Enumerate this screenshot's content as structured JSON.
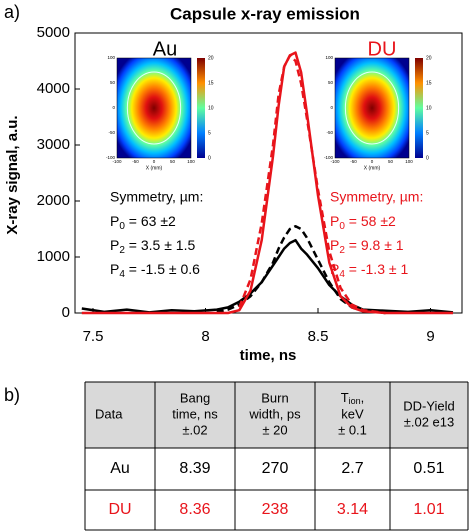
{
  "chart_data": {
    "type": "line",
    "panel_label": "a)",
    "title": "Capsule x-ray emission",
    "xlabel": "time, ns",
    "ylabel": "X-ray signal, a.u.",
    "xlim": [
      7.42,
      9.14
    ],
    "xticks": [
      7.5,
      8,
      8.5,
      9
    ],
    "ylim": [
      0,
      5000
    ],
    "yticks": [
      0,
      1000,
      2000,
      3000,
      4000,
      5000
    ],
    "x": [
      7.45,
      7.55,
      7.65,
      7.75,
      7.85,
      7.95,
      8.05,
      8.1,
      8.15,
      8.2,
      8.25,
      8.3,
      8.325,
      8.35,
      8.375,
      8.4,
      8.425,
      8.45,
      8.5,
      8.55,
      8.6,
      8.65,
      8.7,
      8.8,
      8.9,
      9.0,
      9.1
    ],
    "series": [
      {
        "color": "#000000",
        "dash": false,
        "values": [
          80,
          20,
          60,
          10,
          50,
          30,
          60,
          100,
          200,
          350,
          550,
          850,
          1000,
          1150,
          1250,
          1300,
          1150,
          1050,
          800,
          500,
          300,
          150,
          60,
          40,
          20,
          50,
          10
        ]
      },
      {
        "color": "#000000",
        "dash": true,
        "values": [
          null,
          null,
          null,
          null,
          null,
          null,
          20,
          60,
          150,
          300,
          550,
          900,
          1150,
          1350,
          1500,
          1550,
          1500,
          1350,
          950,
          550,
          250,
          100,
          40,
          0,
          null,
          null,
          null
        ]
      },
      {
        "color": "#e8141b",
        "dash": false,
        "values": [
          0,
          0,
          0,
          0,
          0,
          0,
          0,
          0,
          50,
          400,
          1300,
          2800,
          3700,
          4400,
          4600,
          4650,
          4300,
          3600,
          2100,
          900,
          300,
          100,
          30,
          0,
          0,
          0,
          0
        ]
      },
      {
        "color": "#e8141b",
        "dash": true,
        "values": [
          null,
          null,
          null,
          null,
          null,
          null,
          null,
          null,
          100,
          600,
          1600,
          3000,
          3900,
          4400,
          4600,
          4500,
          4100,
          3500,
          2200,
          1100,
          450,
          150,
          50,
          0,
          null,
          null,
          null
        ]
      }
    ],
    "insets": {
      "axis_ticks": [
        -100,
        -50,
        0,
        50,
        100
      ],
      "colorbar_ticks": [
        0,
        5,
        10,
        15,
        20
      ],
      "xlabel": "X (mm)"
    },
    "annotations": [
      {
        "label": "Au",
        "color": "#000000",
        "heading": "Symmetry, µm:",
        "params": [
          {
            "symbol": "P",
            "sub": "0",
            "text": " = 63 ±2"
          },
          {
            "symbol": "P",
            "sub": "2",
            "text": " = 3.5 ± 1.5"
          },
          {
            "symbol": "P",
            "sub": "4",
            "text": " = -1.5 ± 0.6"
          }
        ]
      },
      {
        "label": "DU",
        "color": "#e8141b",
        "heading": "Symmetry, µm:",
        "params": [
          {
            "symbol": "P",
            "sub": "0",
            "text": " = 58 ±2"
          },
          {
            "symbol": "P",
            "sub": "2",
            "text": " = 9.8 ± 1"
          },
          {
            "symbol": "P",
            "sub": "4",
            "text": " = -1.3 ± 1"
          }
        ]
      }
    ]
  },
  "table": {
    "panel_label": "b)",
    "header": [
      {
        "lines": [
          "Data"
        ]
      },
      {
        "lines": [
          "Bang",
          "time, ns",
          "±.02"
        ]
      },
      {
        "lines": [
          "Burn",
          "width, ps",
          "± 20"
        ]
      },
      {
        "symbol": "T",
        "sub": "ion",
        "suffix": ",",
        "lines": [
          "keV",
          "± 0.1"
        ]
      },
      {
        "lines": [
          "DD-Yield",
          "±.02 e13"
        ]
      }
    ],
    "rows": [
      {
        "color": "#000000",
        "cells": [
          "Au",
          8.39,
          270,
          2.7,
          0.51
        ]
      },
      {
        "color": "#e8141b",
        "cells": [
          "DU",
          8.36,
          238,
          3.14,
          1.01
        ]
      }
    ]
  }
}
